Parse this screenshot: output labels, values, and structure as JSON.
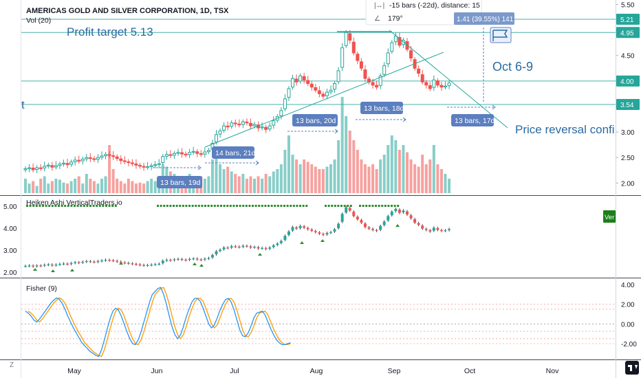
{
  "header": {
    "symbol_title": "AMERICAS GOLD AND SILVER CORPORATION, 1D, TSX",
    "volume_label": "Vol (20)"
  },
  "tooltip": {
    "bars_line": "-15 bars (-22d), distance: 15",
    "angle_line": "179°"
  },
  "annotations": {
    "profit_target": "Profit target 5.13",
    "oct_window": "Oct 6-9",
    "reversal": "Price reversal confi",
    "stray_char": "t",
    "measure_top": "1.41 (39.55%) 141",
    "counts": [
      "13 bars, 19d",
      "14 bars, 21d",
      "13 bars, 20d",
      "13 bars, 18d",
      "13 bars, 17d"
    ]
  },
  "price_scale": {
    "ticks": [
      "5.50",
      "5.00",
      "4.50",
      "4.00",
      "3.50",
      "3.00",
      "2.50",
      "2.00"
    ],
    "badges": [
      "5.21",
      "4.95",
      "4.00",
      "3.54"
    ]
  },
  "heiken": {
    "title": "Heiken Ashi VerticalTraders.io",
    "ticks": [
      "5.00",
      "4.00",
      "3.00",
      "2.00"
    ],
    "badge": "Ver"
  },
  "fisher": {
    "title": "Fisher (9)",
    "ticks": [
      "4.00",
      "2.00",
      "0.00",
      "-2.00"
    ]
  },
  "time_axis": {
    "labels": [
      "May",
      "Jun",
      "Jul",
      "Aug",
      "Sep",
      "Oct",
      "Nov"
    ],
    "corner": "Z"
  },
  "colors": {
    "up": "#26a69a",
    "down": "#ef5350",
    "trendline": "#26a69a",
    "badge_blue": "#5b7fbf",
    "fisher_blue": "#2196f3",
    "fisher_orange": "#ff9800",
    "green_dots": "#2e8b2e"
  },
  "chart_data": {
    "type": "candlestick",
    "title": "AMERICAS GOLD AND SILVER CORPORATION, 1D, TSX",
    "x_ticks": [
      "May",
      "Jun",
      "Jul",
      "Aug",
      "Sep",
      "Oct",
      "Nov"
    ],
    "y_ticks": [
      5.5,
      5.0,
      4.5,
      4.0,
      3.5,
      3.0,
      2.5,
      2.0
    ],
    "y_range": [
      1.85,
      5.55
    ],
    "close": [
      2.28,
      2.3,
      2.26,
      2.3,
      2.29,
      2.33,
      2.35,
      2.31,
      2.34,
      2.37,
      2.39,
      2.36,
      2.41,
      2.45,
      2.43,
      2.47,
      2.5,
      2.48,
      2.46,
      2.5,
      2.53,
      2.56,
      2.54,
      2.52,
      2.48,
      2.44,
      2.42,
      2.4,
      2.38,
      2.35,
      2.33,
      2.31,
      2.32,
      2.34,
      2.36,
      2.38,
      2.52,
      2.56,
      2.54,
      2.58,
      2.6,
      2.57,
      2.55,
      2.6,
      2.62,
      2.58,
      2.56,
      2.61,
      2.64,
      2.78,
      2.95,
      3.02,
      3.12,
      3.1,
      3.18,
      3.16,
      3.14,
      3.2,
      3.18,
      3.12,
      3.15,
      3.08,
      3.1,
      3.05,
      3.12,
      3.22,
      3.3,
      3.42,
      3.65,
      3.85,
      4.05,
      3.98,
      4.1,
      4.02,
      3.95,
      3.88,
      3.82,
      3.75,
      3.7,
      3.78,
      3.82,
      3.95,
      4.2,
      4.65,
      4.95,
      4.8,
      4.55,
      4.4,
      4.25,
      4.05,
      3.98,
      3.92,
      3.88,
      4.1,
      4.3,
      4.55,
      4.75,
      4.88,
      4.7,
      4.8,
      4.62,
      4.45,
      4.25,
      4.15,
      3.98,
      3.92,
      3.85,
      4.02,
      3.92,
      3.88,
      3.9,
      3.96
    ],
    "volume": [
      0.3,
      0.2,
      0.25,
      0.15,
      0.3,
      0.35,
      0.2,
      0.25,
      0.3,
      0.28,
      0.22,
      0.2,
      0.25,
      0.3,
      0.35,
      0.2,
      0.4,
      0.3,
      0.25,
      0.2,
      0.3,
      0.35,
      1.0,
      0.5,
      0.3,
      0.25,
      0.2,
      0.3,
      0.25,
      0.2,
      0.22,
      0.2,
      0.25,
      0.3,
      0.25,
      0.3,
      0.6,
      0.55,
      0.45,
      0.4,
      0.35,
      0.3,
      0.3,
      0.4,
      0.35,
      0.3,
      0.35,
      0.3,
      0.35,
      0.7,
      0.8,
      0.6,
      0.5,
      0.55,
      0.45,
      0.4,
      0.35,
      0.4,
      0.3,
      0.35,
      0.3,
      0.35,
      0.3,
      0.4,
      0.35,
      0.45,
      0.5,
      0.6,
      0.9,
      1.2,
      0.8,
      0.7,
      0.6,
      0.7,
      0.65,
      0.6,
      0.55,
      0.5,
      0.5,
      0.55,
      0.6,
      0.7,
      1.1,
      2.0,
      1.6,
      1.3,
      1.1,
      0.9,
      0.7,
      0.6,
      0.55,
      0.6,
      0.5,
      0.7,
      0.8,
      1.0,
      1.2,
      1.1,
      0.9,
      1.0,
      0.85,
      0.7,
      0.6,
      0.55,
      0.8,
      0.6,
      0.7,
      1.0,
      0.6,
      0.5,
      0.4,
      0.3
    ],
    "fisher": [
      1.3,
      1.1,
      0.8,
      0.4,
      0.2,
      0.5,
      0.9,
      1.3,
      1.7,
      2.1,
      2.4,
      2.65,
      2.5,
      2.1,
      1.5,
      0.8,
      0.2,
      -0.4,
      -0.9,
      -1.4,
      -1.9,
      -2.2,
      -2.5,
      -2.8,
      -3.0,
      -3.2,
      -3.3,
      -2.6,
      -1.6,
      -0.5,
      0.5,
      1.3,
      1.6,
      1.4,
      0.8,
      0.0,
      -0.8,
      -1.5,
      -2.0,
      -2.1,
      -1.6,
      -0.8,
      0.2,
      1.2,
      2.2,
      3.0,
      3.3,
      3.6,
      3.7,
      3.0,
      2.0,
      0.8,
      -0.3,
      -1.1,
      -1.5,
      -1.1,
      -0.3,
      0.7,
      1.5,
      2.2,
      2.6,
      2.6,
      2.3,
      1.6,
      0.8,
      0.0,
      -0.4,
      -0.1,
      0.6,
      1.4,
      2.0,
      2.5,
      2.6,
      2.2,
      1.4,
      0.4,
      -0.6,
      -1.2,
      -1.3,
      -0.9,
      -0.2,
      0.6,
      1.1,
      1.2,
      1.3,
      0.9,
      0.2,
      -0.5,
      -1.1,
      -1.6,
      -1.9,
      -2.1,
      -2.1,
      -2.0,
      -1.9
    ]
  }
}
